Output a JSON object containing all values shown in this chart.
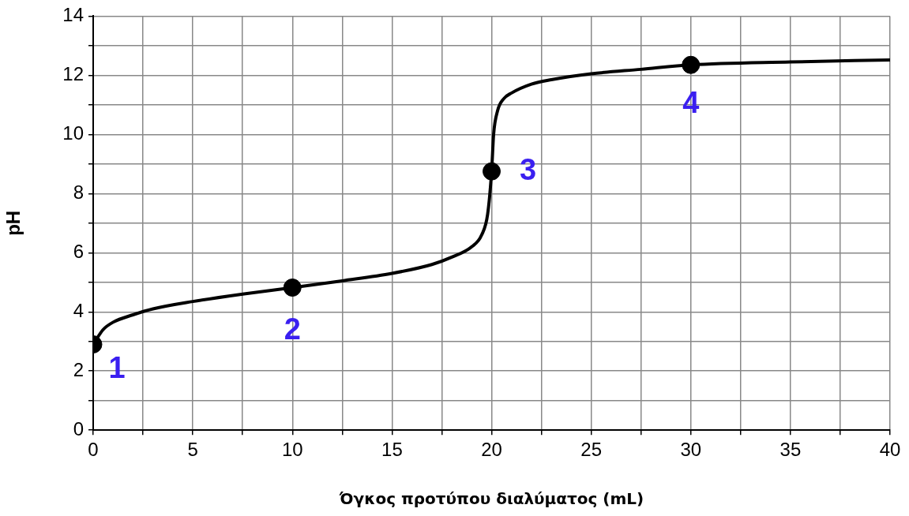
{
  "chart_data": {
    "type": "line",
    "xlabel": "Όγκος προτύπου διαλύματος (mL)",
    "ylabel": "pH",
    "xlim": [
      0,
      40
    ],
    "ylim": [
      0,
      14
    ],
    "xticks": [
      0,
      {
        "value": 2.5,
        "label": null
      },
      5,
      {
        "value": 7.5,
        "label": null
      },
      10,
      {
        "value": 12.5,
        "label": null
      },
      15,
      {
        "value": 17.5,
        "label": null
      },
      20,
      {
        "value": 22.5,
        "label": null
      },
      25,
      {
        "value": 27.5,
        "label": null
      },
      30,
      {
        "value": 32.5,
        "label": null
      },
      35,
      {
        "value": 37.5,
        "label": null
      },
      40
    ],
    "yticks": [
      0,
      {
        "value": 1,
        "label": null
      },
      2,
      {
        "value": 3,
        "label": null
      },
      4,
      {
        "value": 5,
        "label": null
      },
      6,
      {
        "value": 7,
        "label": null
      },
      8,
      {
        "value": 9,
        "label": null
      },
      10,
      {
        "value": 11,
        "label": null
      },
      12,
      {
        "value": 13,
        "label": null
      },
      14
    ],
    "grid": true,
    "legend": false,
    "series": [
      {
        "type": "line",
        "color": "#000000",
        "marker": "none",
        "x": [
          0,
          0.5,
          1,
          2,
          3,
          5,
          7.5,
          10,
          12.5,
          15,
          17,
          18,
          19,
          19.5,
          19.8,
          20,
          20.1,
          20.3,
          20.6,
          21,
          22,
          23,
          25,
          27.5,
          30,
          35,
          40
        ],
        "values": [
          2.9,
          3.4,
          3.65,
          3.9,
          4.1,
          4.35,
          4.6,
          4.82,
          5.05,
          5.3,
          5.6,
          5.85,
          6.2,
          6.6,
          7.3,
          8.75,
          10,
          10.8,
          11.2,
          11.4,
          11.7,
          11.85,
          12.05,
          12.2,
          12.35,
          12.45,
          12.52
        ]
      },
      {
        "type": "scatter",
        "color": "#000000",
        "marker": "circle",
        "x": [
          0,
          10,
          20,
          30
        ],
        "values": [
          2.9,
          4.82,
          8.75,
          12.35
        ]
      }
    ],
    "annotations": [
      {
        "text": "1",
        "x": 0,
        "y": 2.9
      },
      {
        "text": "2",
        "x": 10,
        "y": 4.82
      },
      {
        "text": "3",
        "x": 20,
        "y": 8.75
      },
      {
        "text": "4",
        "x": 30,
        "y": 12.35
      }
    ]
  }
}
